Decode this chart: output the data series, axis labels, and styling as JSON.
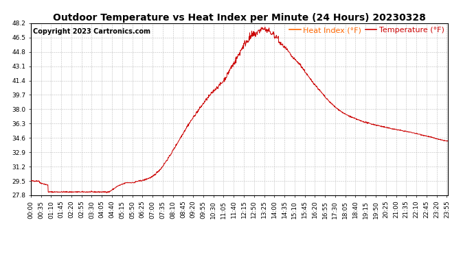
{
  "title": "Outdoor Temperature vs Heat Index per Minute (24 Hours) 20230328",
  "copyright": "Copyright 2023 Cartronics.com",
  "legend_heat_index": "Heat Index (°F)",
  "legend_temperature": "Temperature (°F)",
  "heat_index_color": "#ff6600",
  "line_color": "#cc0000",
  "background_color": "#ffffff",
  "grid_color": "#bbbbbb",
  "ylim": [
    27.8,
    48.2
  ],
  "yticks": [
    27.8,
    29.5,
    31.2,
    32.9,
    34.6,
    36.3,
    38.0,
    39.7,
    41.4,
    43.1,
    44.8,
    46.5,
    48.2
  ],
  "title_fontsize": 10,
  "copyright_fontsize": 7,
  "legend_fontsize": 8,
  "tick_fontsize": 6.5
}
